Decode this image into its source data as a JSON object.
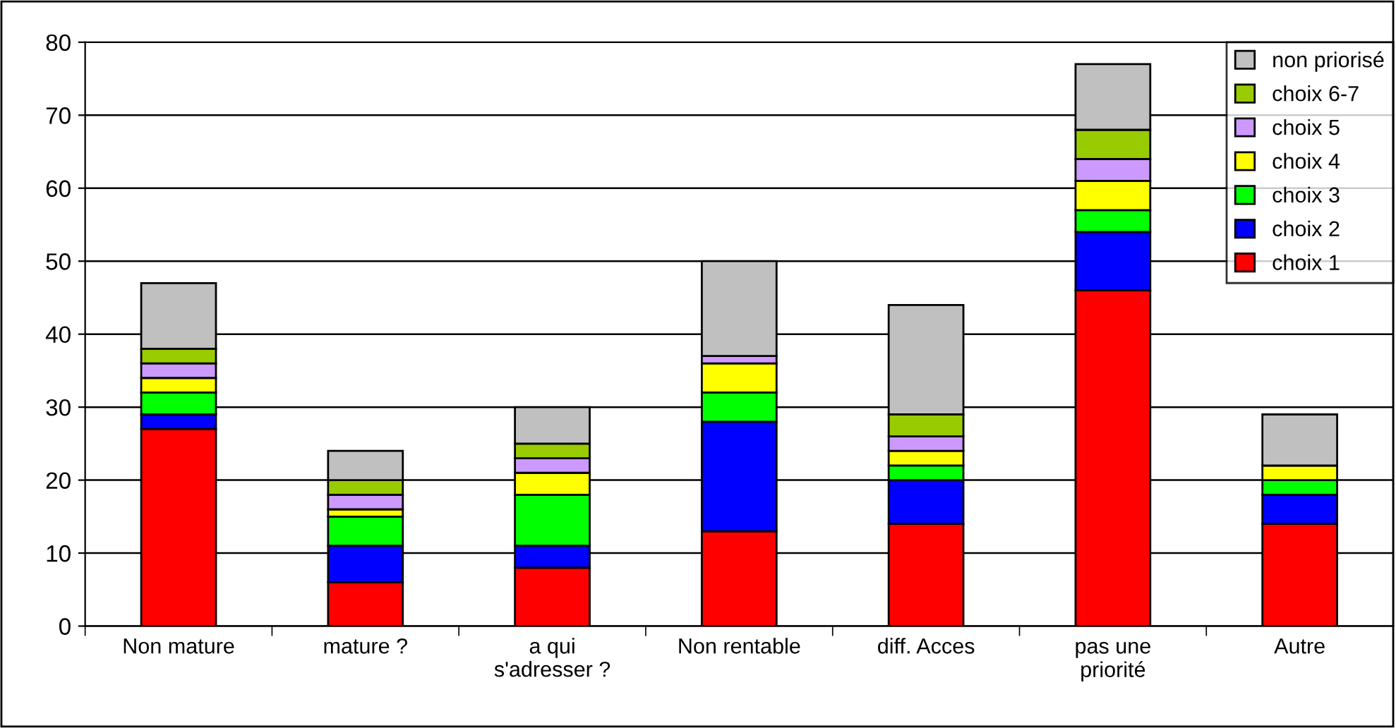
{
  "chart_data": {
    "type": "bar",
    "stacked": true,
    "categories": [
      "Non mature",
      "mature ?",
      "a qui\ns'adresser ?",
      "Non rentable",
      "diff. Acces",
      "pas une\npriorité",
      "Autre"
    ],
    "series": [
      {
        "name": "choix 1",
        "color": "#ff0000",
        "values": [
          27,
          6,
          8,
          13,
          14,
          46,
          14
        ]
      },
      {
        "name": "choix 2",
        "color": "#0000ff",
        "values": [
          2,
          5,
          3,
          15,
          6,
          8,
          4
        ]
      },
      {
        "name": "choix 3",
        "color": "#00ff00",
        "values": [
          3,
          4,
          7,
          4,
          2,
          3,
          2
        ]
      },
      {
        "name": "choix 4",
        "color": "#ffff00",
        "values": [
          2,
          1,
          3,
          4,
          2,
          4,
          2
        ]
      },
      {
        "name": "choix 5",
        "color": "#cc99ff",
        "values": [
          2,
          2,
          2,
          1,
          2,
          3,
          0
        ]
      },
      {
        "name": "choix 6-7",
        "color": "#99cc00",
        "values": [
          2,
          2,
          2,
          0,
          3,
          4,
          0
        ]
      },
      {
        "name": "non priorisé",
        "color": "#c0c0c0",
        "values": [
          9,
          4,
          5,
          13,
          15,
          9,
          7
        ]
      }
    ],
    "ylim": [
      0,
      80
    ],
    "yticks": [
      0,
      10,
      20,
      30,
      40,
      50,
      60,
      70,
      80
    ],
    "grid": "y",
    "legend": "top right"
  }
}
